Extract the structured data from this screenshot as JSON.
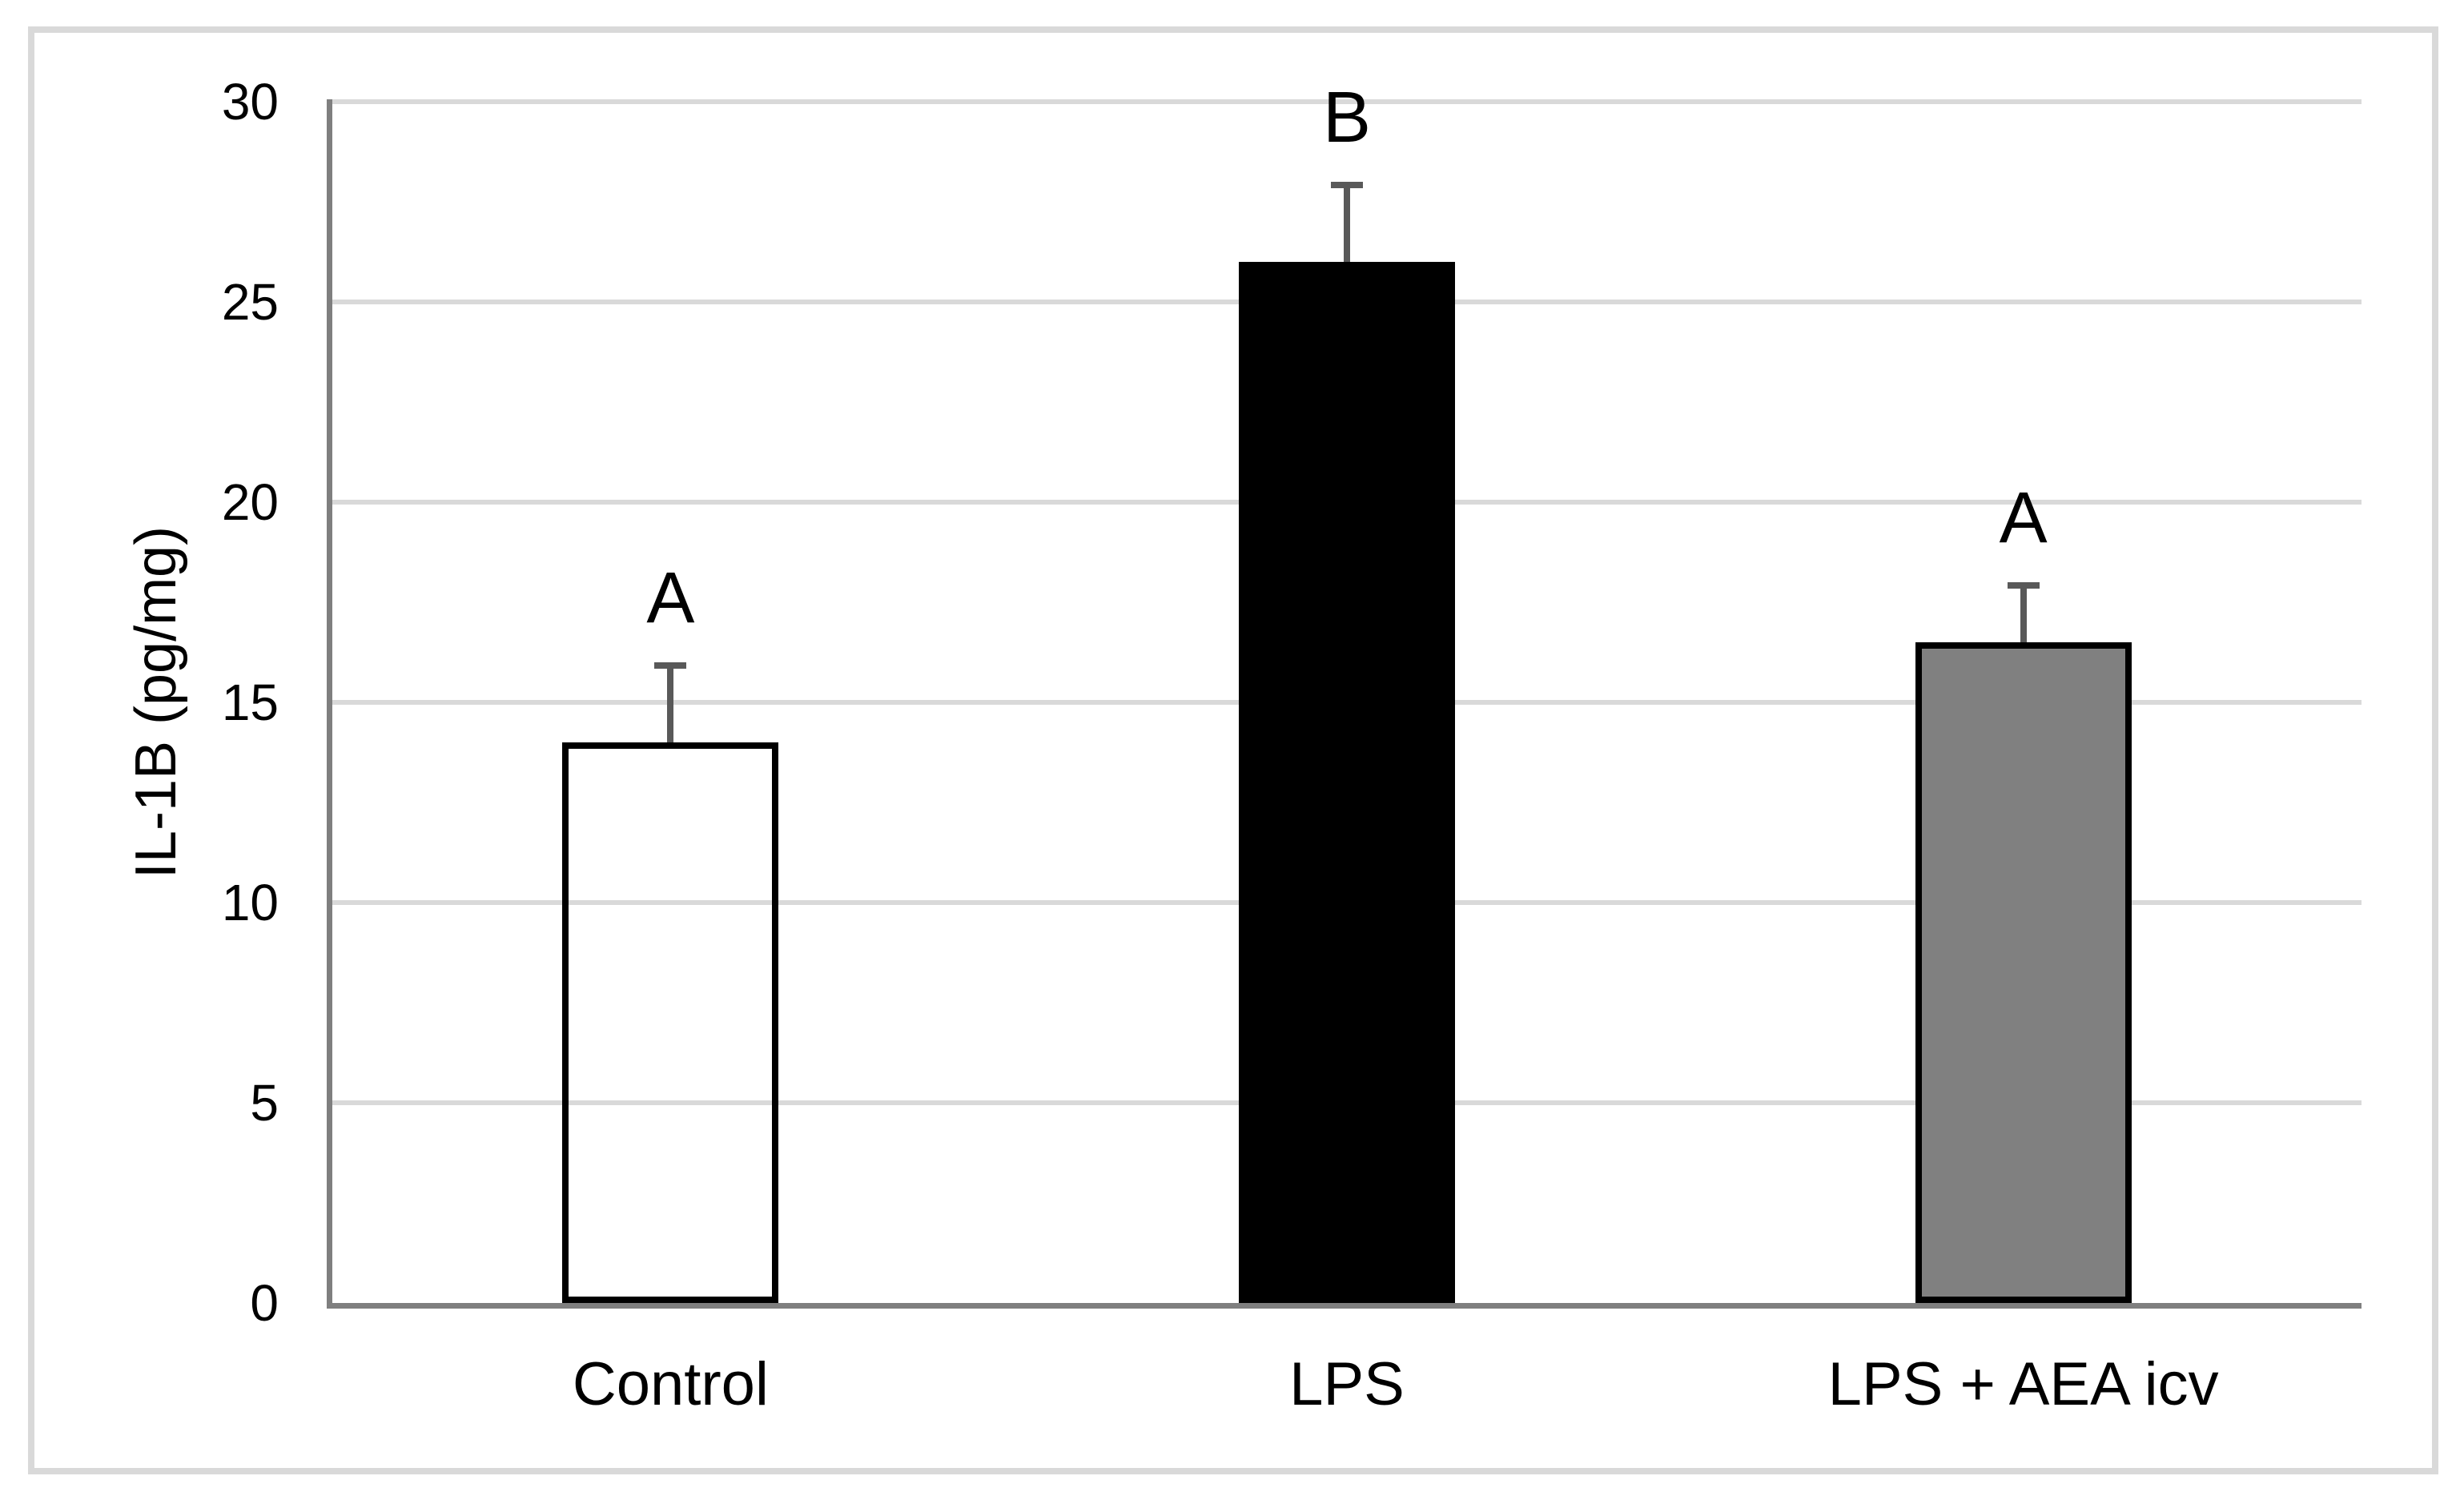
{
  "chart_data": {
    "type": "bar",
    "title": "",
    "xlabel": "",
    "ylabel": "IL-1B (pg/mg)",
    "ylim": [
      0,
      30
    ],
    "yticks": [
      0,
      5,
      10,
      15,
      20,
      25,
      30
    ],
    "grid": true,
    "legend": "none",
    "categories": [
      "Control",
      "LPS",
      "LPS + AEA icv"
    ],
    "values": [
      14,
      26,
      16.5
    ],
    "errors_plus": [
      2,
      2,
      1.5
    ],
    "significance_labels": [
      "A",
      "B",
      "A"
    ],
    "bar_fill_colors": [
      "transparent",
      "#000000",
      "#808080"
    ],
    "colors": {
      "bar_border": "#000000",
      "error_bar": "#595959",
      "axis_line": "#7f7f7f",
      "gridline": "#d9d9d9",
      "frame_border": "#d9d9d9",
      "background": "#ffffff",
      "text": "#000000"
    }
  }
}
